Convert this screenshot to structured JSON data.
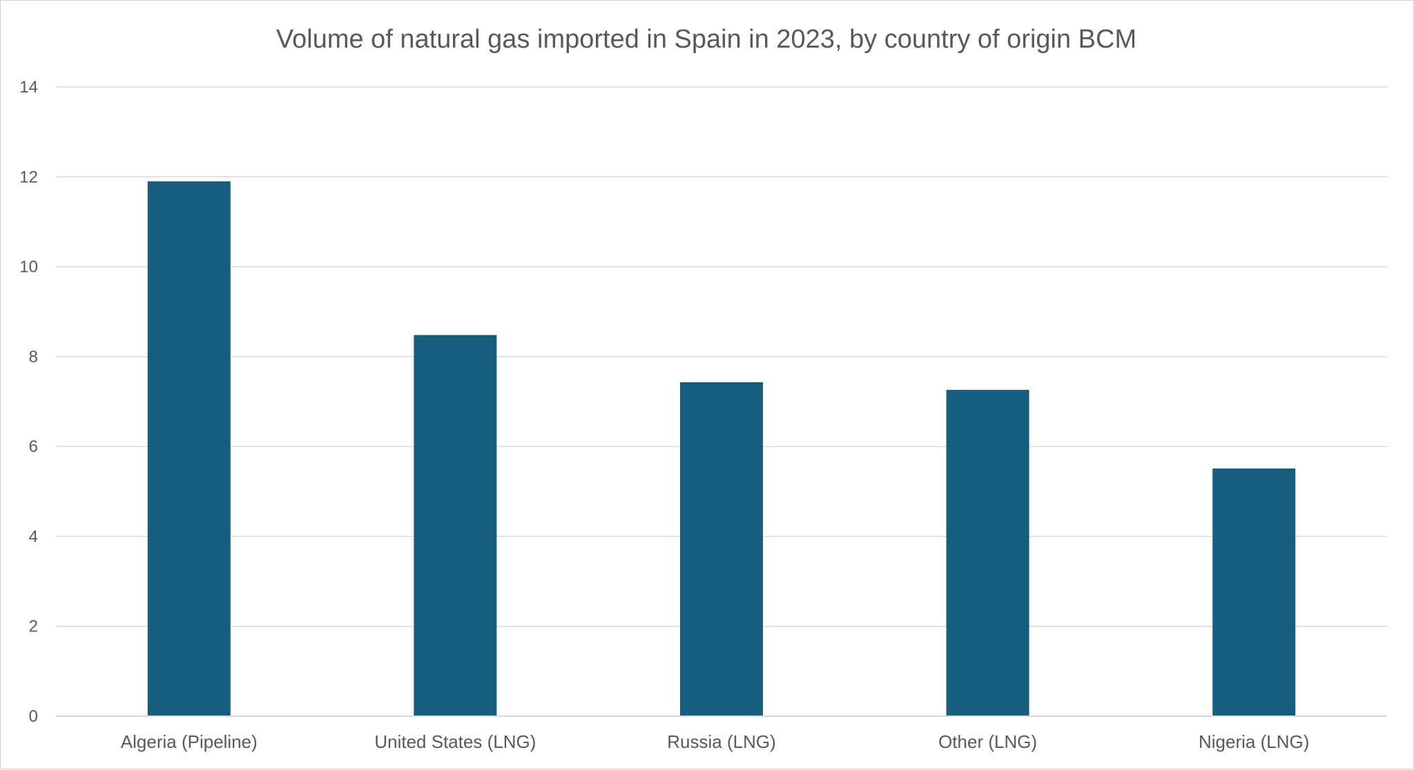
{
  "chart_data": {
    "type": "bar",
    "title": "Volume of natural gas imported in Spain in 2023, by country of origin BCM",
    "xlabel": "",
    "ylabel": "",
    "categories": [
      "Algeria (Pipeline)",
      "United States (LNG)",
      "Russia (LNG)",
      "Other (LNG)",
      "Nigeria (LNG)"
    ],
    "values": [
      11.9,
      8.48,
      7.43,
      7.26,
      5.51
    ],
    "ylim": [
      0,
      14
    ],
    "yticks": [
      "0",
      "2",
      "4",
      "6",
      "8",
      "10",
      "12",
      "14"
    ],
    "grid": true,
    "legend": "none",
    "bar_color": "#155e80",
    "grid_color": "#d9d9d9",
    "text_color": "#595959"
  }
}
